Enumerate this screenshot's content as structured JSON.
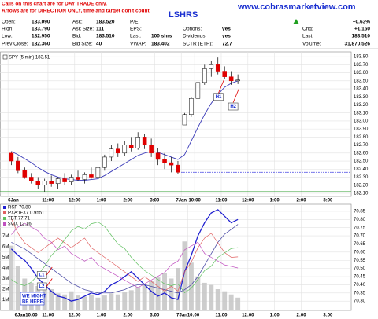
{
  "header": {
    "notes": [
      "Calls on this chart are for DAY TRADE only.",
      "Arrows are for DIRECTION ONLY, time and target don't count."
    ],
    "site": "www.cobrasmarketview.com",
    "symbol": "LSHRS",
    "quote_rows": [
      [
        {
          "label": "Open:",
          "value": "183.090"
        },
        {
          "label": "Ask:",
          "value": "183.520"
        },
        {
          "label": "P/E:"
        },
        null,
        {
          "value": "+0.63%"
        }
      ],
      [
        {
          "label": "High:",
          "value": "183.790"
        },
        {
          "label": "Ask Size:",
          "value": "111"
        },
        {
          "label": "EPS:"
        },
        {
          "label": "Options:",
          "value": "yes"
        },
        {
          "label": "Chg:",
          "value": "+1.150"
        }
      ],
      [
        {
          "label": "Low:",
          "value": "182.950"
        },
        {
          "label": "Bid:",
          "value": "183.510"
        },
        {
          "label": "Last:",
          "value": "100 shrs"
        },
        {
          "label": "Dividends:",
          "value": "yes"
        },
        {
          "label": "Last:",
          "value": "183.510"
        }
      ],
      [
        {
          "label": "Prev Close:",
          "value": "182.360"
        },
        {
          "label": "Bid Size:",
          "value": "40"
        },
        {
          "label": "VWAP:",
          "value": "183.402"
        },
        {
          "label": "SCTR (ETF):",
          "value": "72.7"
        },
        {
          "label": "Volume:",
          "value": "31,870,526"
        }
      ]
    ]
  },
  "chart_data": [
    {
      "type": "candlestick",
      "legend": "SPY (5 min) 183.51",
      "up_color": "#ffffff",
      "down_color": "#e00000",
      "x": [
        0.5,
        1.5,
        2.5,
        3.5,
        4.5,
        5.5,
        6.5,
        7.5,
        8.5,
        9.5,
        10.5,
        11.5,
        12.5,
        13.5,
        14.5,
        15.5,
        16.5,
        17.5,
        18.5,
        19.5,
        20.5,
        21.5,
        22.5,
        23.5,
        24.5,
        25.5,
        26.5,
        27.5,
        28.5,
        29.5,
        30.5,
        31.5,
        32.5,
        33.5,
        34.5
      ],
      "open": [
        182.6,
        182.5,
        182.38,
        182.3,
        182.25,
        182.2,
        182.25,
        182.22,
        182.28,
        182.24,
        182.3,
        182.27,
        182.33,
        182.3,
        182.42,
        182.55,
        182.65,
        182.6,
        182.7,
        182.66,
        182.8,
        182.7,
        182.6,
        182.52,
        182.48,
        182.45,
        182.95,
        183.08,
        183.28,
        183.48,
        183.65,
        183.7,
        183.62,
        183.55,
        183.5
      ],
      "high": [
        182.62,
        182.55,
        182.42,
        182.35,
        182.3,
        182.28,
        182.32,
        182.3,
        182.35,
        182.33,
        182.38,
        182.36,
        182.42,
        182.45,
        182.58,
        182.7,
        182.72,
        182.75,
        182.8,
        182.86,
        182.84,
        182.78,
        182.66,
        182.6,
        182.55,
        182.5,
        183.1,
        183.3,
        183.52,
        183.7,
        183.75,
        183.79,
        183.68,
        183.62,
        183.58
      ],
      "low": [
        182.45,
        182.35,
        182.28,
        182.22,
        182.15,
        182.12,
        182.18,
        182.15,
        182.2,
        182.2,
        182.25,
        182.22,
        182.28,
        182.28,
        182.38,
        182.5,
        182.55,
        182.56,
        182.62,
        182.64,
        182.65,
        182.55,
        182.45,
        182.4,
        182.36,
        182.34,
        182.95,
        183.05,
        183.25,
        183.45,
        183.55,
        183.58,
        183.52,
        183.45,
        183.46
      ],
      "close": [
        182.5,
        182.38,
        182.3,
        182.25,
        182.2,
        182.25,
        182.22,
        182.28,
        182.24,
        182.3,
        182.27,
        182.33,
        182.3,
        182.42,
        182.55,
        182.65,
        182.6,
        182.7,
        182.66,
        182.8,
        182.7,
        182.6,
        182.52,
        182.48,
        182.45,
        182.36,
        183.08,
        183.28,
        183.48,
        183.65,
        183.7,
        183.62,
        183.55,
        183.5,
        183.51
      ],
      "series": [
        {
          "color": "#3a3ab8",
          "values": [
            182.62,
            182.58,
            182.53,
            182.48,
            182.42,
            182.37,
            182.33,
            182.3,
            182.28,
            182.27,
            182.26,
            182.26,
            182.27,
            182.28,
            182.32,
            182.37,
            182.42,
            182.47,
            182.52,
            182.57,
            182.6,
            182.62,
            182.61,
            182.58,
            182.55,
            182.52,
            182.58,
            182.75,
            182.92,
            183.08,
            183.22,
            183.33,
            183.42,
            183.47,
            183.5
          ]
        }
      ],
      "hlines": [
        {
          "value": 182.36,
          "from": 26,
          "color": "#3030e0",
          "dash": true
        },
        {
          "value": 182.12,
          "from": -1.2,
          "color": "#30a030",
          "dash": false
        }
      ],
      "annotations": [
        {
          "text": "H1",
          "x": 31,
          "y": 183.3
        },
        {
          "text": "H2",
          "x": 33.2,
          "y": 183.18
        }
      ],
      "xlim": [
        -1.2,
        51.5
      ],
      "xticks": [
        {
          "value": 0,
          "label": "6Jan"
        },
        {
          "value": 6,
          "label": "11:00"
        },
        {
          "value": 10,
          "label": "12:00"
        },
        {
          "value": 14,
          "label": "1:00"
        },
        {
          "value": 18,
          "label": "2:00"
        },
        {
          "value": 22,
          "label": "3:00"
        },
        {
          "value": 26,
          "label": "7Jan"
        },
        {
          "value": 28,
          "label": "10:00"
        },
        {
          "value": 32,
          "label": "11:00"
        },
        {
          "value": 36,
          "label": "12:00"
        },
        {
          "value": 40,
          "label": "1:00"
        },
        {
          "value": 44,
          "label": "2:00"
        },
        {
          "value": 48,
          "label": "3:00"
        }
      ],
      "ylim": [
        182.06,
        183.86
      ],
      "yticks": [
        {
          "value": 182.1,
          "label": "182.10"
        },
        {
          "value": 182.2,
          "label": "182.20"
        },
        {
          "value": 182.3,
          "label": "182.30"
        },
        {
          "value": 182.4,
          "label": "182.40"
        },
        {
          "value": 182.5,
          "label": "182.50"
        },
        {
          "value": 182.6,
          "label": "182.60"
        },
        {
          "value": 182.7,
          "label": "182.70"
        },
        {
          "value": 182.8,
          "label": "182.80"
        },
        {
          "value": 182.9,
          "label": "182.90"
        },
        {
          "value": 183.0,
          "label": "183.00"
        },
        {
          "value": 183.1,
          "label": "183.10"
        },
        {
          "value": 183.2,
          "label": "183.20"
        },
        {
          "value": 183.3,
          "label": "183.30"
        },
        {
          "value": 183.4,
          "label": "183.40"
        },
        {
          "value": 183.5,
          "label": "183.50"
        },
        {
          "value": 183.6,
          "label": "183.60"
        },
        {
          "value": 183.7,
          "label": "183.70"
        },
        {
          "value": 183.8,
          "label": "183.80"
        }
      ],
      "grid": true
    },
    {
      "type": "line",
      "x": [
        0.5,
        1.5,
        2.5,
        3.5,
        4.5,
        5.5,
        6.5,
        7.5,
        8.5,
        9.5,
        10.5,
        11.5,
        12.5,
        13.5,
        14.5,
        15.5,
        16.5,
        17.5,
        18.5,
        19.5,
        20.5,
        21.5,
        22.5,
        23.5,
        24.5,
        25.5,
        26.5,
        27.5,
        28.5,
        29.5,
        30.5,
        31.5,
        32.5,
        33.5,
        34.5
      ],
      "volume": {
        "color": "#c4c4c4",
        "axis": "y2",
        "values": [
          6100000,
          4200000,
          3000000,
          2600000,
          2300000,
          1900000,
          2000000,
          1600000,
          1500000,
          1800000,
          1400000,
          1300000,
          1500000,
          1200000,
          1400000,
          1600000,
          1500000,
          1700000,
          1900000,
          2200000,
          2500000,
          2800000,
          3100000,
          3500000,
          3000000,
          4000000,
          6500000,
          4500000,
          3200000,
          2600000,
          2400000,
          2000000,
          1800000,
          1500000,
          1200000
        ]
      },
      "series": [
        {
          "name": "RSP 70.80",
          "color": "#2020d0",
          "width": 1.3,
          "values": [
            70.62,
            70.58,
            70.55,
            70.5,
            70.44,
            70.4,
            70.36,
            70.33,
            70.32,
            70.3,
            70.31,
            70.33,
            70.35,
            70.34,
            70.36,
            70.4,
            70.42,
            70.45,
            70.48,
            70.44,
            70.4,
            70.36,
            70.33,
            70.35,
            70.32,
            70.31,
            70.48,
            70.58,
            70.7,
            70.78,
            70.84,
            70.86,
            70.82,
            70.78,
            70.8
          ]
        },
        {
          "color": "#5050a8",
          "width": 0.8,
          "values": [
            70.66,
            70.64,
            70.62,
            70.59,
            70.56,
            70.53,
            70.5,
            70.47,
            70.44,
            70.41,
            70.39,
            70.37,
            70.36,
            70.35,
            70.35,
            70.35,
            70.36,
            70.37,
            70.39,
            70.4,
            70.4,
            70.39,
            70.38,
            70.37,
            70.36,
            70.35,
            70.37,
            70.4,
            70.45,
            70.52,
            70.59,
            70.66,
            70.71,
            70.74,
            70.77
          ]
        },
        {
          "name": "PXA:IFX7 0.9551",
          "color": "#e06060",
          "width": 0.7,
          "ylim": [
            0.944,
            0.966
          ],
          "values": [
            0.963,
            0.96,
            0.958,
            0.957,
            0.956,
            0.957,
            0.958,
            0.959,
            0.958,
            0.957,
            0.958,
            0.959,
            0.957,
            0.956,
            0.955,
            0.954,
            0.953,
            0.952,
            0.951,
            0.95,
            0.951,
            0.95,
            0.949,
            0.948,
            0.949,
            0.948,
            0.952,
            0.954,
            0.957,
            0.959,
            0.96,
            0.958,
            0.956,
            0.955,
            0.9551
          ]
        },
        {
          "name": "TBT 77.71",
          "color": "#60c060",
          "width": 0.7,
          "ylim": [
            77.0,
            78.2
          ],
          "values": [
            77.35,
            77.3,
            77.28,
            77.32,
            77.4,
            77.5,
            77.62,
            77.7,
            77.8,
            77.9,
            77.95,
            77.92,
            77.98,
            78.0,
            77.95,
            77.85,
            77.75,
            77.7,
            77.6,
            77.52,
            77.45,
            77.4,
            77.35,
            77.3,
            77.28,
            77.3,
            77.2,
            77.25,
            77.35,
            77.45,
            77.5,
            77.6,
            77.65,
            77.7,
            77.71
          ]
        },
        {
          "name": "$VIX 12.16",
          "color": "#c050c0",
          "width": 0.7,
          "ylim": [
            11.6,
            13.0
          ],
          "values": [
            12.6,
            12.7,
            12.75,
            12.7,
            12.65,
            12.55,
            12.5,
            12.4,
            12.45,
            12.35,
            12.3,
            12.25,
            12.3,
            12.2,
            12.15,
            12.1,
            12.05,
            12.0,
            11.95,
            11.9,
            11.95,
            12.0,
            12.05,
            12.1,
            12.2,
            12.25,
            12.4,
            12.45,
            12.5,
            12.35,
            12.3,
            12.25,
            12.2,
            12.18,
            12.16
          ]
        }
      ],
      "annotations": [
        {
          "text": "L1",
          "x": 4.5,
          "y": 70.46
        },
        {
          "text": "L2",
          "x": 4.5,
          "y": 70.39
        }
      ],
      "callout": [
        "WE MIGHT",
        "BE HERE."
      ],
      "xlim": [
        -1.2,
        51.5
      ],
      "xticks": [
        {
          "value": 1,
          "label": "6Jan10:00"
        },
        {
          "value": 6,
          "label": "11:00"
        },
        {
          "value": 10,
          "label": "12:00"
        },
        {
          "value": 14,
          "label": "1:00"
        },
        {
          "value": 18,
          "label": "2:00"
        },
        {
          "value": 22,
          "label": "3:00"
        },
        {
          "value": 27,
          "label": "7Jan10:00"
        },
        {
          "value": 32,
          "label": "11:00"
        },
        {
          "value": 36,
          "label": "12:00"
        },
        {
          "value": 40,
          "label": "1:00"
        },
        {
          "value": 44,
          "label": "2:00"
        },
        {
          "value": 48,
          "label": "3:00"
        }
      ],
      "ylim": [
        70.243,
        70.893
      ],
      "yticks": [
        {
          "value": 70.3,
          "label": "70.30"
        },
        {
          "value": 70.35,
          "label": "70.35"
        },
        {
          "value": 70.4,
          "label": "70.40"
        },
        {
          "value": 70.45,
          "label": "70.45"
        },
        {
          "value": 70.5,
          "label": "70.50"
        },
        {
          "value": 70.55,
          "label": "70.55"
        },
        {
          "value": 70.6,
          "label": "70.60"
        },
        {
          "value": 70.65,
          "label": "70.65"
        },
        {
          "value": 70.7,
          "label": "70.70"
        },
        {
          "value": 70.75,
          "label": "70.75"
        },
        {
          "value": 70.8,
          "label": "70.80"
        },
        {
          "value": 70.85,
          "label": "70.85"
        }
      ],
      "y2lim": [
        0,
        10000000
      ],
      "y2ticks": [
        {
          "value": 1000000,
          "label": "1M"
        },
        {
          "value": 2000000,
          "label": "2M"
        },
        {
          "value": 3000000,
          "label": "3M"
        },
        {
          "value": 4000000,
          "label": "4M"
        },
        {
          "value": 5000000,
          "label": "5M"
        },
        {
          "value": 6000000,
          "label": "6M"
        },
        {
          "value": 7000000,
          "label": "7M"
        }
      ],
      "grid": true
    }
  ]
}
